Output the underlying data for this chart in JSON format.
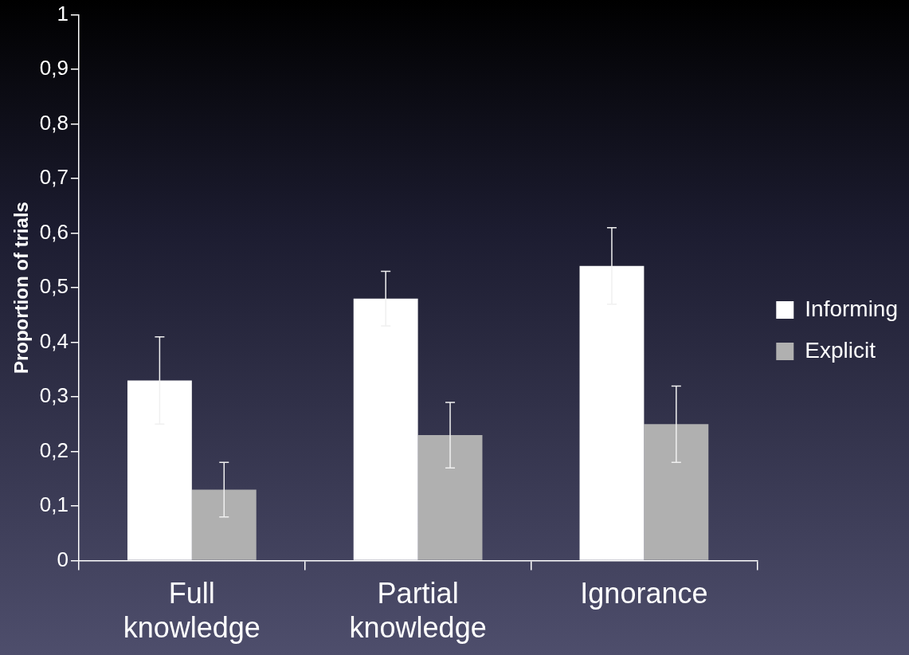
{
  "chart_data": {
    "type": "bar",
    "ylabel": "Proportion of trials",
    "categories": [
      "Full knowledge",
      "Partial knowledge",
      "Ignorance"
    ],
    "series": [
      {
        "name": "Informing",
        "color": "#ffffff",
        "values": [
          0.33,
          0.48,
          0.54
        ],
        "errors": [
          0.08,
          0.05,
          0.07
        ]
      },
      {
        "name": "Explicit",
        "color": "#b0b0b0",
        "values": [
          0.13,
          0.23,
          0.25
        ],
        "errors": [
          0.05,
          0.06,
          0.07
        ]
      }
    ],
    "ylim": [
      0,
      1
    ],
    "yticks": [
      0,
      {
        "value": 0.1,
        "label": "0,1"
      },
      {
        "value": 0.2,
        "label": "0,2"
      },
      {
        "value": 0.3,
        "label": "0,3"
      },
      {
        "value": 0.4,
        "label": "0,4"
      },
      {
        "value": 0.5,
        "label": "0,5"
      },
      {
        "value": 0.6,
        "label": "0,6"
      },
      {
        "value": 0.7,
        "label": "0,7"
      },
      {
        "value": 0.8,
        "label": "0,8"
      },
      {
        "value": 0.9,
        "label": "0,9"
      },
      1
    ],
    "grid": false,
    "legend": "right"
  }
}
